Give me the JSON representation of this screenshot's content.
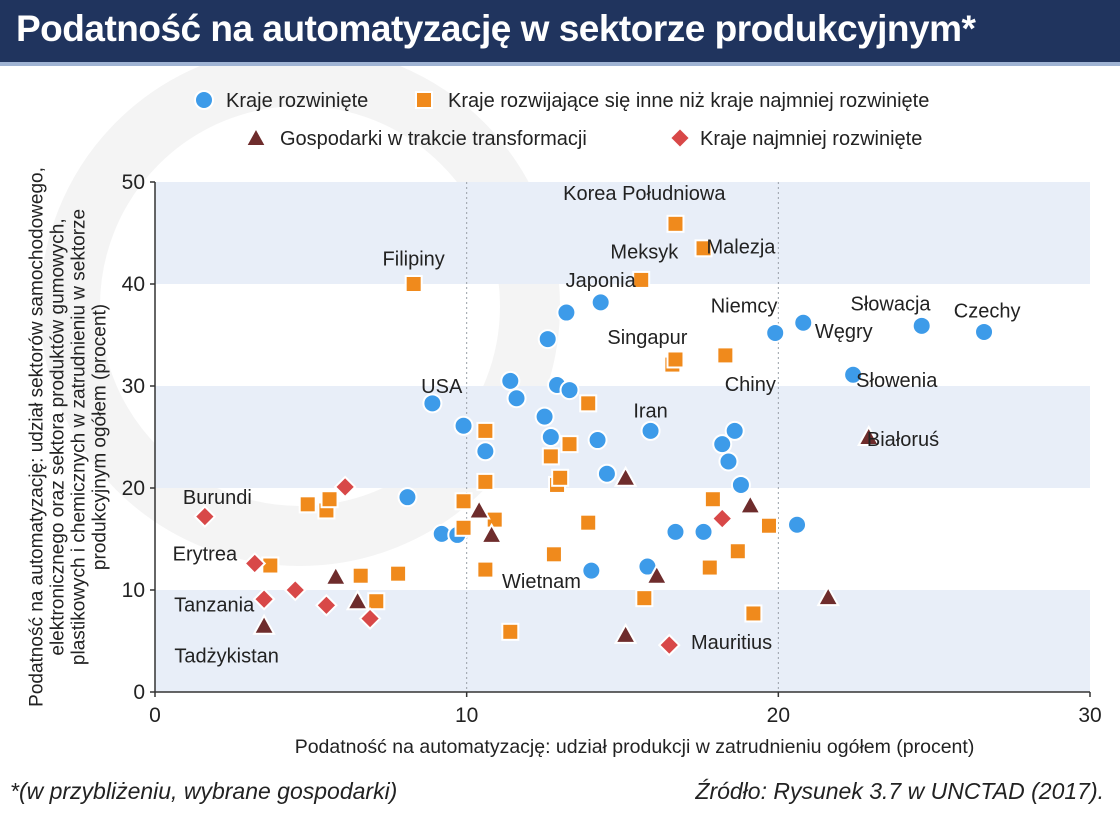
{
  "header": {
    "title": "Podatność na automatyzację w sektorze produkcyjnym*"
  },
  "footer": {
    "footnote": "*(w przybliżeniu, wybrane gospodarki)",
    "source": "Źródło: Rysunek 3.7 w UNCTAD (2017)."
  },
  "colors": {
    "developed": "#3d9be9",
    "developing": "#f08a1c",
    "transition": "#6e2c2c",
    "least_developed": "#d84848",
    "band": "#e8eef8",
    "title_bg": "#20345e"
  },
  "chart_data": {
    "type": "scatter",
    "xlabel": "Podatność na automatyzację: udział produkcji w zatrudnieniu ogółem (procent)",
    "ylabel": "Podatność na automatyzację: udział sektorów samochodowego, elektronicznego oraz sektora produktów gumowych, plastikowych i chemicznych w zatrudnieniu w sektorze produkcyjnym ogółem (procent)",
    "xlim": [
      0,
      30
    ],
    "ylim": [
      0,
      50
    ],
    "x_ticks": [
      0,
      10,
      20,
      30
    ],
    "y_ticks": [
      0,
      10,
      20,
      30,
      40,
      50
    ],
    "grid": "alternating horizontal bands, dotted vertical lines",
    "legend_position": "top",
    "series": [
      {
        "name": "Kraje rozwinięte",
        "marker": "circle",
        "color": "#3d9be9",
        "points": [
          {
            "x": 8.1,
            "y": 19.1
          },
          {
            "x": 8.9,
            "y": 28.3
          },
          {
            "x": 9.2,
            "y": 15.5
          },
          {
            "x": 9.7,
            "y": 15.4
          },
          {
            "x": 9.9,
            "y": 26.1
          },
          {
            "x": 10.6,
            "y": 23.6
          },
          {
            "x": 11.4,
            "y": 30.5
          },
          {
            "x": 11.6,
            "y": 28.8
          },
          {
            "x": 12.5,
            "y": 27.0
          },
          {
            "x": 12.6,
            "y": 34.6
          },
          {
            "x": 12.7,
            "y": 25.0
          },
          {
            "x": 12.9,
            "y": 30.1
          },
          {
            "x": 13.2,
            "y": 37.2
          },
          {
            "x": 13.3,
            "y": 29.6
          },
          {
            "x": 14.0,
            "y": 11.9
          },
          {
            "x": 14.2,
            "y": 24.7
          },
          {
            "x": 14.3,
            "y": 38.2
          },
          {
            "x": 14.5,
            "y": 21.4
          },
          {
            "x": 15.8,
            "y": 12.3
          },
          {
            "x": 15.9,
            "y": 25.6
          },
          {
            "x": 16.7,
            "y": 15.7
          },
          {
            "x": 17.6,
            "y": 15.7
          },
          {
            "x": 18.2,
            "y": 24.3
          },
          {
            "x": 18.4,
            "y": 22.6
          },
          {
            "x": 18.6,
            "y": 25.6
          },
          {
            "x": 18.8,
            "y": 20.3
          },
          {
            "x": 19.9,
            "y": 35.2
          },
          {
            "x": 20.6,
            "y": 16.4
          },
          {
            "x": 20.8,
            "y": 36.2
          },
          {
            "x": 22.4,
            "y": 31.1
          },
          {
            "x": 24.6,
            "y": 35.9
          },
          {
            "x": 26.6,
            "y": 35.3
          }
        ]
      },
      {
        "name": "Kraje rozwijające się inne niż kraje najmniej rozwinięte",
        "marker": "square",
        "color": "#f08a1c",
        "points": [
          {
            "x": 3.7,
            "y": 12.4
          },
          {
            "x": 4.9,
            "y": 18.4
          },
          {
            "x": 5.5,
            "y": 17.8
          },
          {
            "x": 5.6,
            "y": 18.9
          },
          {
            "x": 6.6,
            "y": 11.4
          },
          {
            "x": 7.1,
            "y": 8.9
          },
          {
            "x": 7.8,
            "y": 11.6
          },
          {
            "x": 8.3,
            "y": 40.0
          },
          {
            "x": 9.9,
            "y": 18.7
          },
          {
            "x": 9.9,
            "y": 16.1
          },
          {
            "x": 10.6,
            "y": 25.6
          },
          {
            "x": 10.6,
            "y": 20.6
          },
          {
            "x": 10.6,
            "y": 12.0
          },
          {
            "x": 10.9,
            "y": 16.9
          },
          {
            "x": 11.4,
            "y": 5.9
          },
          {
            "x": 12.7,
            "y": 23.1
          },
          {
            "x": 12.8,
            "y": 13.5
          },
          {
            "x": 12.9,
            "y": 20.3
          },
          {
            "x": 13.0,
            "y": 21.0
          },
          {
            "x": 13.3,
            "y": 24.3
          },
          {
            "x": 13.9,
            "y": 28.3
          },
          {
            "x": 13.9,
            "y": 16.6
          },
          {
            "x": 15.6,
            "y": 40.4
          },
          {
            "x": 15.7,
            "y": 9.2
          },
          {
            "x": 16.6,
            "y": 32.1
          },
          {
            "x": 16.7,
            "y": 32.6
          },
          {
            "x": 16.7,
            "y": 45.9
          },
          {
            "x": 17.6,
            "y": 43.5
          },
          {
            "x": 17.8,
            "y": 12.2
          },
          {
            "x": 17.9,
            "y": 18.9
          },
          {
            "x": 18.3,
            "y": 33.0
          },
          {
            "x": 18.7,
            "y": 13.8
          },
          {
            "x": 19.2,
            "y": 7.7
          },
          {
            "x": 19.7,
            "y": 16.3
          }
        ]
      },
      {
        "name": "Gospodarki w trakcie transformacji",
        "marker": "triangle",
        "color": "#6e2c2c",
        "points": [
          {
            "x": 3.5,
            "y": 6.5
          },
          {
            "x": 5.8,
            "y": 11.3
          },
          {
            "x": 6.5,
            "y": 8.9
          },
          {
            "x": 10.4,
            "y": 17.8
          },
          {
            "x": 10.8,
            "y": 15.4
          },
          {
            "x": 15.1,
            "y": 21.0
          },
          {
            "x": 15.1,
            "y": 5.6
          },
          {
            "x": 16.1,
            "y": 11.4
          },
          {
            "x": 19.1,
            "y": 18.3
          },
          {
            "x": 21.6,
            "y": 9.3
          },
          {
            "x": 22.9,
            "y": 25.0
          }
        ]
      },
      {
        "name": "Kraje najmniej rozwinięte",
        "marker": "diamond",
        "color": "#d84848",
        "points": [
          {
            "x": 1.6,
            "y": 17.2
          },
          {
            "x": 3.2,
            "y": 12.6
          },
          {
            "x": 3.5,
            "y": 9.1
          },
          {
            "x": 4.5,
            "y": 10.0
          },
          {
            "x": 5.5,
            "y": 8.5
          },
          {
            "x": 6.1,
            "y": 20.1
          },
          {
            "x": 6.9,
            "y": 7.2
          },
          {
            "x": 16.5,
            "y": 4.6
          },
          {
            "x": 18.2,
            "y": 17.0
          }
        ]
      }
    ],
    "annotations": [
      {
        "text": "Korea Południowa",
        "x": 15.7,
        "y": 48.9
      },
      {
        "text": "Filipiny",
        "x": 8.3,
        "y": 42.5
      },
      {
        "text": "Meksyk",
        "x": 15.7,
        "y": 43.2
      },
      {
        "text": "Malezja",
        "x": 18.8,
        "y": 43.7
      },
      {
        "text": "Japonia",
        "x": 14.3,
        "y": 40.4
      },
      {
        "text": "Niemcy",
        "x": 18.9,
        "y": 37.9
      },
      {
        "text": "Słowacja",
        "x": 23.6,
        "y": 38.1
      },
      {
        "text": "Czechy",
        "x": 26.7,
        "y": 37.4
      },
      {
        "text": "Węgry",
        "x": 22.1,
        "y": 35.4
      },
      {
        "text": "Singapur",
        "x": 15.8,
        "y": 34.8
      },
      {
        "text": "USA",
        "x": 9.2,
        "y": 30.0
      },
      {
        "text": "Chiny",
        "x": 19.1,
        "y": 30.2
      },
      {
        "text": "Słowenia",
        "x": 23.8,
        "y": 30.6
      },
      {
        "text": "Iran",
        "x": 15.9,
        "y": 27.6
      },
      {
        "text": "Białoruś",
        "x": 24.0,
        "y": 24.8
      },
      {
        "text": "Burundi",
        "x": 2.0,
        "y": 19.1
      },
      {
        "text": "Erytrea",
        "x": 1.6,
        "y": 13.6
      },
      {
        "text": "Wietnam",
        "x": 12.4,
        "y": 10.9
      },
      {
        "text": "Tanzania",
        "x": 1.9,
        "y": 8.6
      },
      {
        "text": "Mauritius",
        "x": 18.5,
        "y": 4.9
      },
      {
        "text": "Tadżykistan",
        "x": 2.3,
        "y": 3.6
      }
    ]
  }
}
